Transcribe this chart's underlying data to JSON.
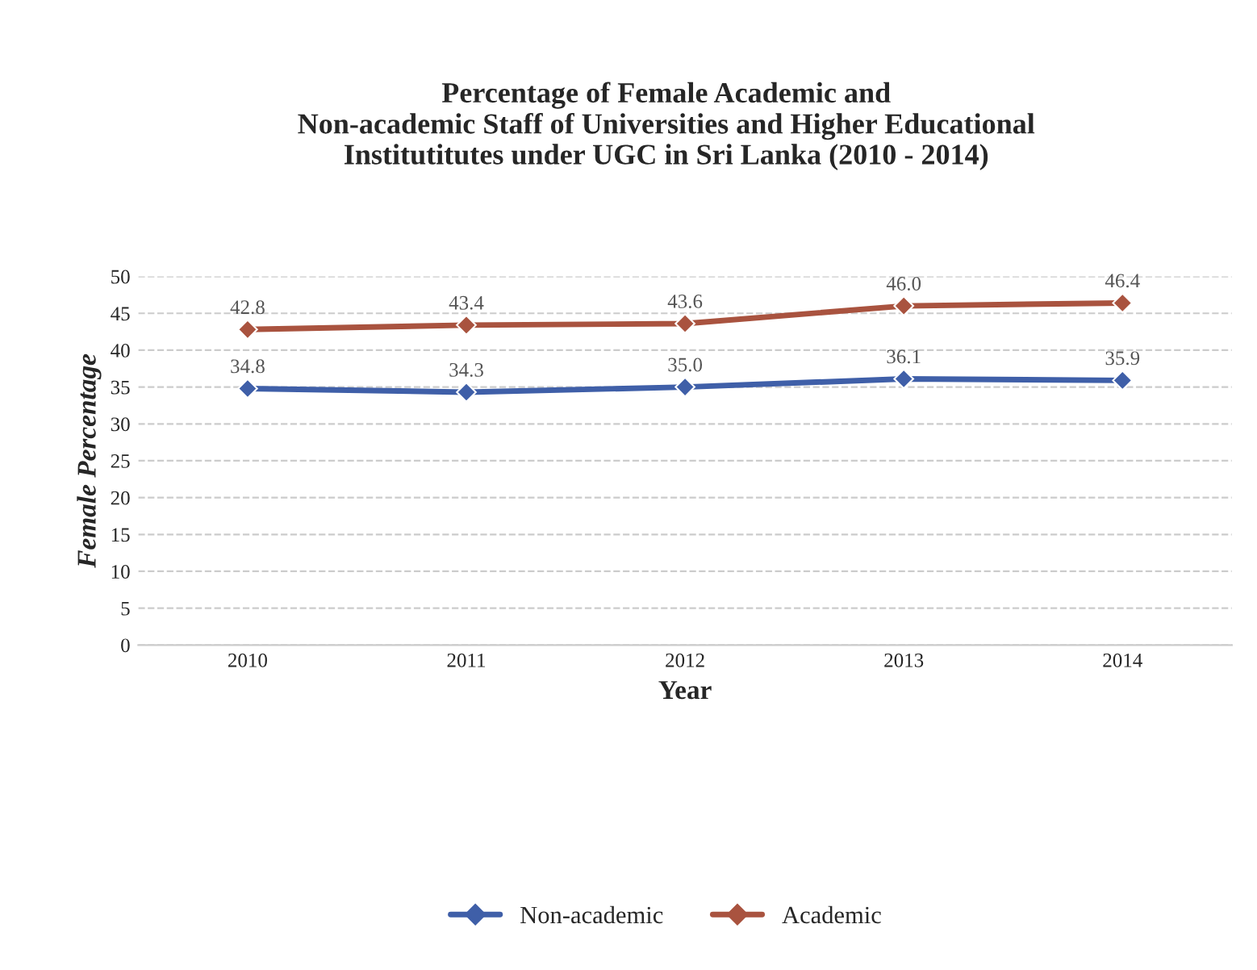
{
  "chart_data": {
    "type": "line",
    "title": "Percentage of Female Academic and\nNon-academic Staff of Universities and Higher Educational\nInstitutitutes under UGC in Sri Lanka (2010 - 2014)",
    "xlabel": "Year",
    "ylabel": "Female Percentage",
    "categories": [
      "2010",
      "2011",
      "2012",
      "2013",
      "2014"
    ],
    "series": [
      {
        "name": "Non-academic",
        "color": "#3f5fa8",
        "values": [
          34.8,
          34.3,
          35.0,
          36.1,
          35.9
        ],
        "value_labels": [
          "34.8",
          "34.3",
          "35.0",
          "36.1",
          "35.9"
        ]
      },
      {
        "name": "Academic",
        "color": "#a9533f",
        "values": [
          42.8,
          43.4,
          43.6,
          46.0,
          46.4
        ],
        "value_labels": [
          "42.8",
          "43.4",
          "43.6",
          "46.0",
          "46.4"
        ]
      }
    ],
    "ylim": [
      0,
      50
    ],
    "yticks": [
      0,
      5,
      10,
      15,
      20,
      25,
      30,
      35,
      40,
      45,
      50
    ],
    "grid": "y",
    "legend": "bottom",
    "marker": "diamond",
    "line_style": "solid"
  }
}
